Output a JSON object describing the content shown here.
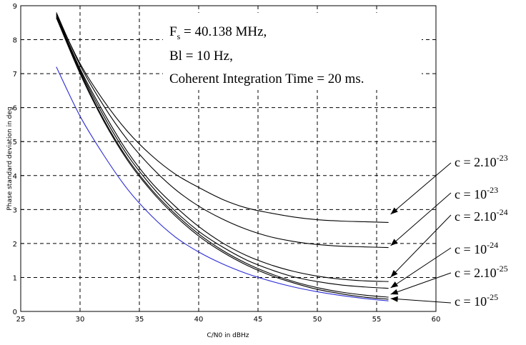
{
  "chart_data": {
    "type": "line",
    "xlabel": "C/N0 in dBHz",
    "ylabel": "Phase standard deviation in deg",
    "xlim": [
      25,
      60
    ],
    "ylim": [
      0,
      9
    ],
    "xticks": [
      "25",
      "30",
      "35",
      "40",
      "45",
      "50",
      "55",
      "60"
    ],
    "yticks": [
      "0",
      "1",
      "2",
      "3",
      "4",
      "5",
      "6",
      "7",
      "8",
      "9"
    ],
    "grid": true,
    "annotation": {
      "fs_prefix": "F",
      "fs_sub": "s",
      "fs_value": " = 40.138 MHz,",
      "line2": "Bl = 10 Hz,",
      "line3": "Coherent Integration Time = 20 ms."
    },
    "series": [
      {
        "label_base": "c = 2.10",
        "label_exp": "-23",
        "color": "#000000",
        "x": [
          28,
          30,
          32,
          34,
          36,
          38,
          40,
          42,
          44,
          46,
          48,
          50,
          52,
          54,
          56
        ],
        "y": [
          8.75,
          7.3,
          6.2,
          5.3,
          4.6,
          4.05,
          3.65,
          3.3,
          3.05,
          2.9,
          2.78,
          2.7,
          2.66,
          2.64,
          2.62
        ]
      },
      {
        "label_base": "c = 10",
        "label_exp": "-23",
        "color": "#000000",
        "x": [
          28,
          30,
          32,
          34,
          36,
          38,
          40,
          42,
          44,
          46,
          48,
          50,
          52,
          54,
          56
        ],
        "y": [
          8.8,
          7.25,
          6.05,
          5.05,
          4.25,
          3.6,
          3.1,
          2.72,
          2.42,
          2.2,
          2.06,
          1.97,
          1.92,
          1.9,
          1.88
        ]
      },
      {
        "label_base": "c = 2.10",
        "label_exp": "-24",
        "color": "#000000",
        "x": [
          28,
          30,
          32,
          34,
          36,
          38,
          40,
          42,
          44,
          46,
          48,
          50,
          52,
          54,
          56
        ],
        "y": [
          8.75,
          7.15,
          5.85,
          4.7,
          3.8,
          3.1,
          2.5,
          2.02,
          1.65,
          1.38,
          1.18,
          1.04,
          0.95,
          0.9,
          0.88
        ]
      },
      {
        "label_base": "c = 10",
        "label_exp": "-24",
        "color": "#000000",
        "x": [
          28,
          30,
          32,
          34,
          36,
          38,
          40,
          42,
          44,
          46,
          48,
          50,
          52,
          54,
          56
        ],
        "y": [
          8.7,
          7.1,
          5.75,
          4.6,
          3.7,
          2.96,
          2.36,
          1.9,
          1.52,
          1.24,
          1.02,
          0.88,
          0.78,
          0.72,
          0.68
        ]
      },
      {
        "label_base": "c = 2.10",
        "label_exp": "-25",
        "color": "#000000",
        "x": [
          28,
          30,
          32,
          34,
          36,
          38,
          40,
          42,
          44,
          46,
          48,
          50,
          52,
          54,
          56
        ],
        "y": [
          8.65,
          7.05,
          5.65,
          4.5,
          3.6,
          2.88,
          2.28,
          1.8,
          1.42,
          1.12,
          0.88,
          0.7,
          0.57,
          0.48,
          0.42
        ]
      },
      {
        "label_base": "c = 10",
        "label_exp": "-25",
        "color": "#000000",
        "x": [
          28,
          30,
          32,
          34,
          36,
          38,
          40,
          42,
          44,
          46,
          48,
          50,
          52,
          54,
          56
        ],
        "y": [
          8.65,
          7.0,
          5.6,
          4.45,
          3.55,
          2.82,
          2.22,
          1.75,
          1.37,
          1.07,
          0.84,
          0.65,
          0.52,
          0.42,
          0.36
        ]
      },
      {
        "color": "#2b2bd6",
        "x": [
          28,
          30,
          32,
          34,
          36,
          38,
          40,
          42,
          44,
          46,
          48,
          50,
          52,
          54,
          56
        ],
        "y": [
          7.2,
          5.75,
          4.6,
          3.6,
          2.82,
          2.2,
          1.75,
          1.4,
          1.12,
          0.9,
          0.72,
          0.58,
          0.47,
          0.38,
          0.31
        ]
      }
    ]
  }
}
